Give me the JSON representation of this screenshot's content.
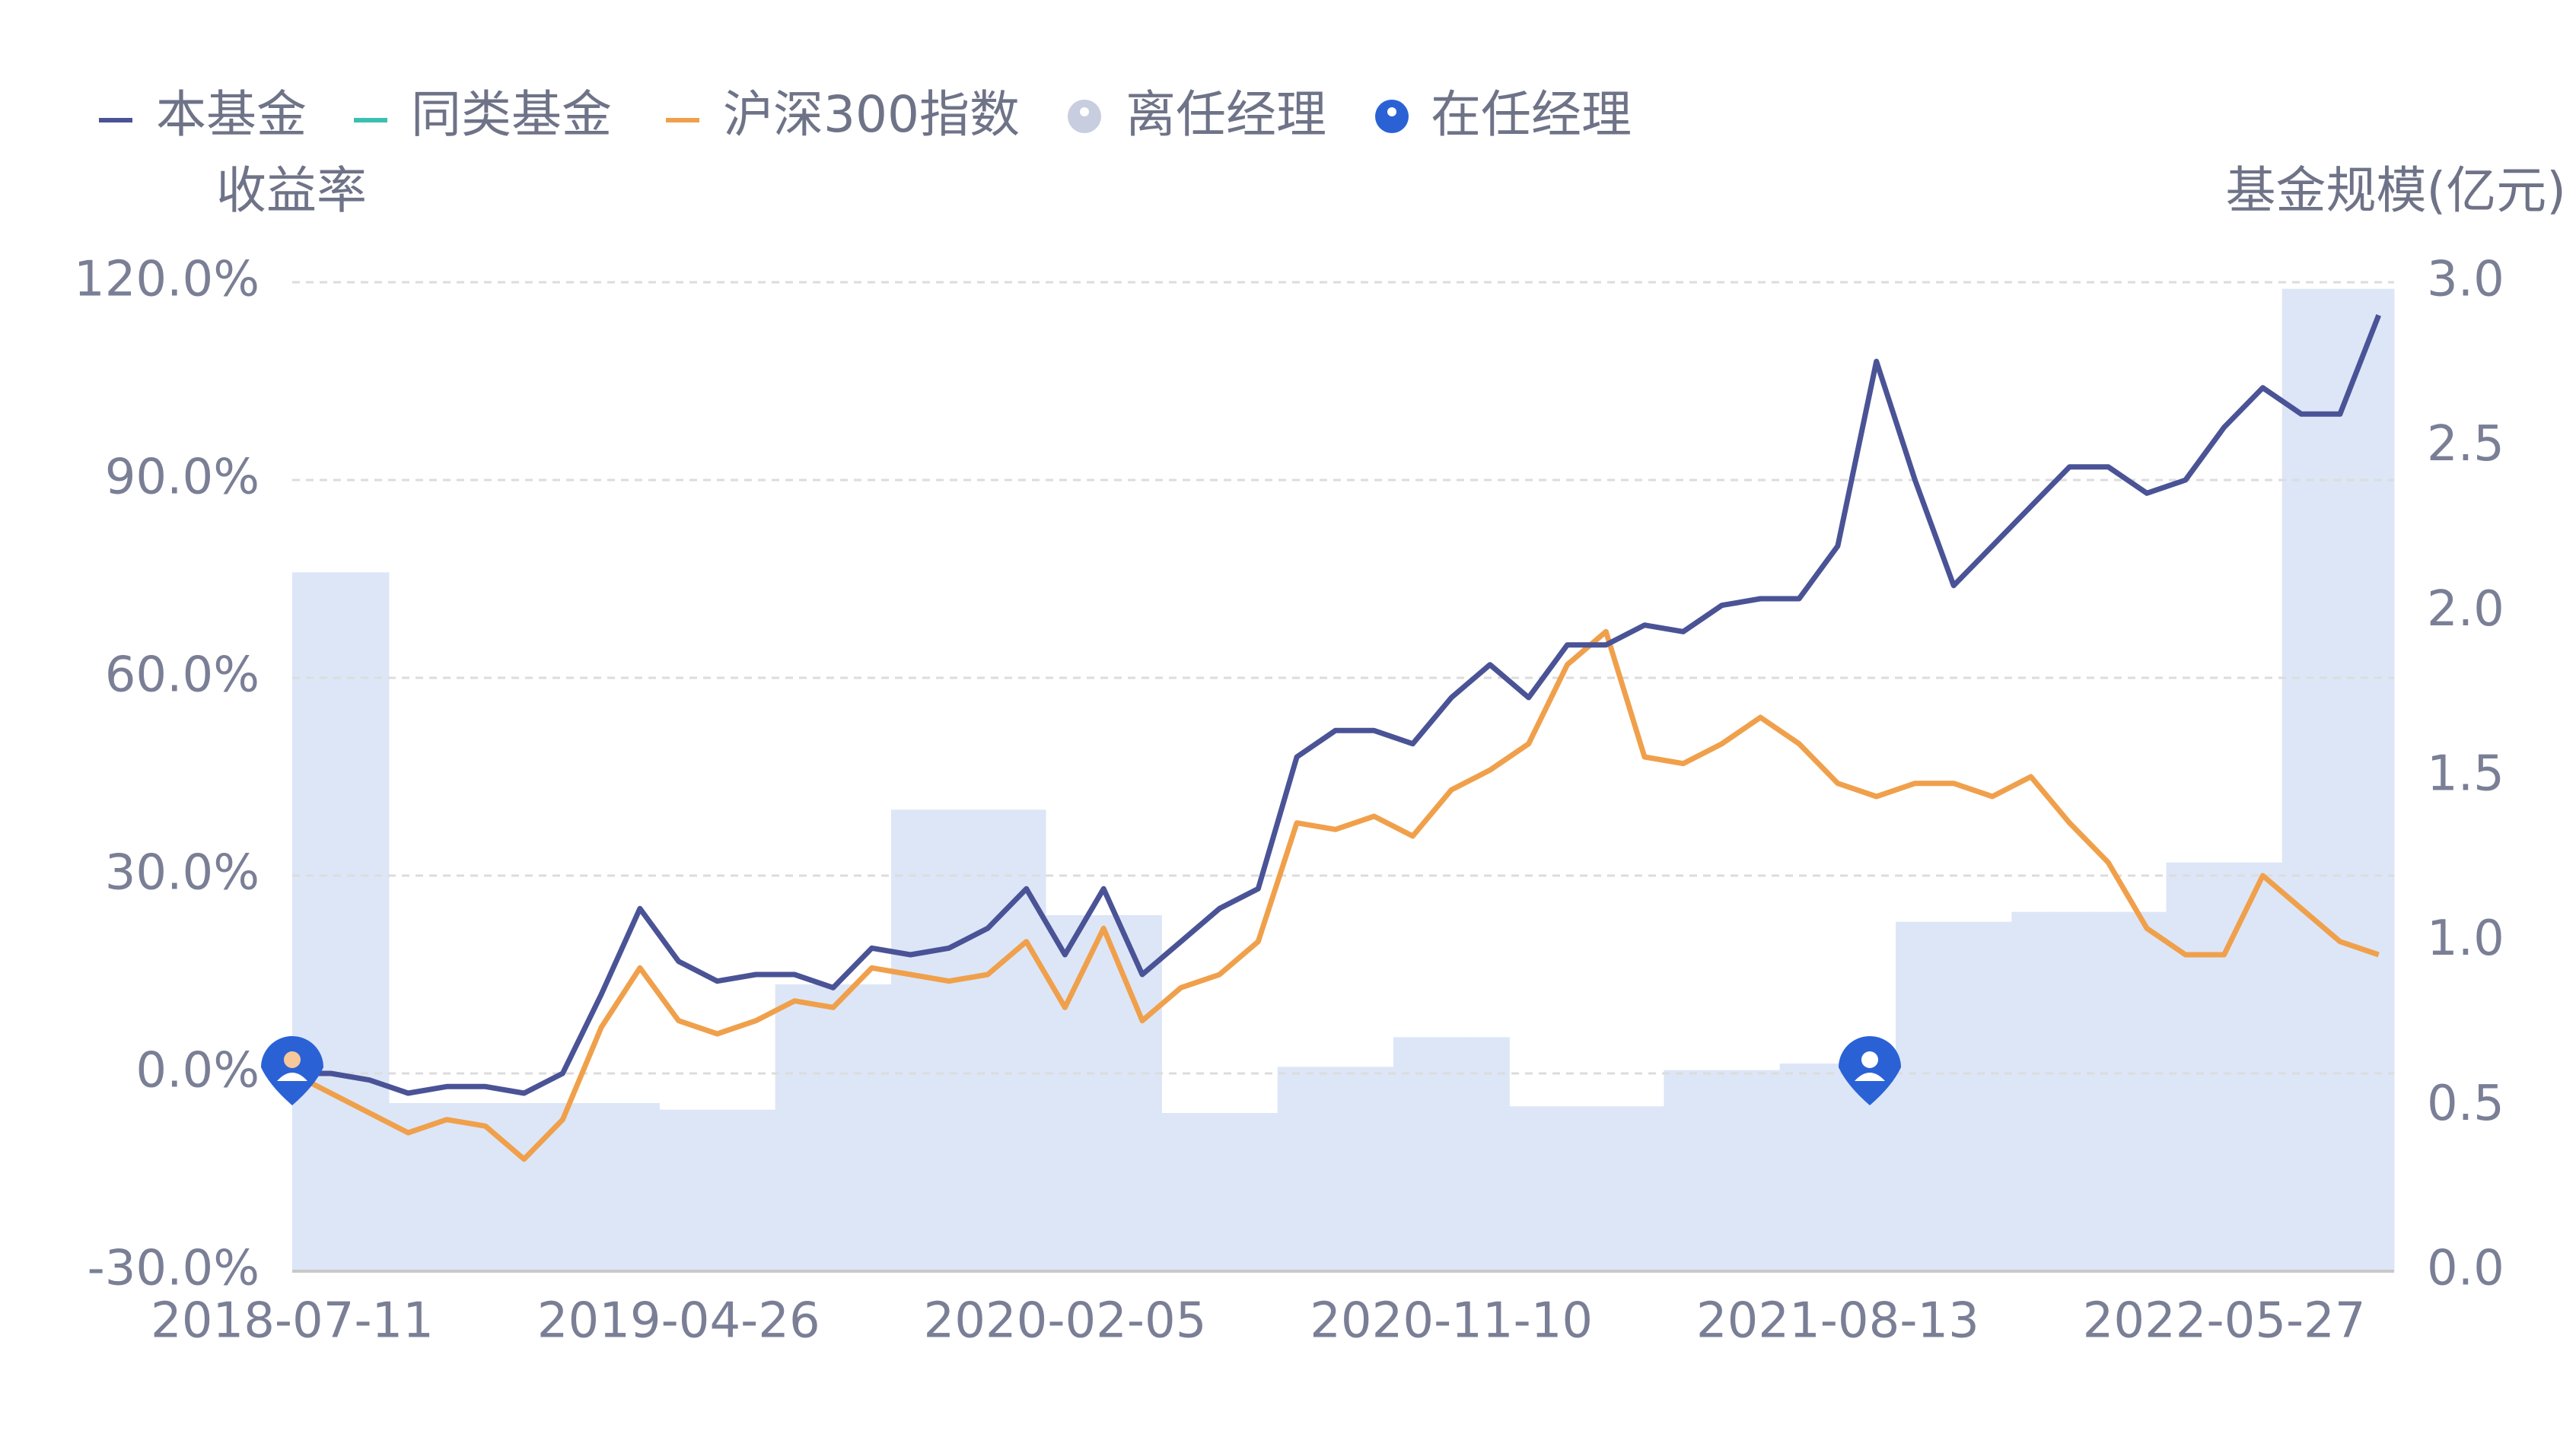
{
  "chart_data": {
    "type": "line",
    "y_label": "收益率",
    "y2_label": "基金规模(亿元)",
    "categories": [
      "2018-07-11",
      null,
      null,
      null,
      null,
      null,
      null,
      null,
      null,
      null,
      "2019-04-26",
      null,
      null,
      null,
      null,
      null,
      null,
      null,
      null,
      null,
      "2020-02-05",
      null,
      null,
      null,
      null,
      null,
      null,
      null,
      null,
      null,
      "2020-11-10",
      null,
      null,
      null,
      null,
      null,
      null,
      null,
      null,
      null,
      "2021-08-13",
      null,
      null,
      null,
      null,
      null,
      null,
      null,
      null,
      null,
      "2022-05-27",
      null,
      null,
      null,
      null
    ],
    "series": [
      {
        "name": "本基金",
        "color": "#4a5396",
        "values": [
          0,
          0,
          -1,
          -3,
          -2,
          -2,
          -3,
          0,
          12,
          25,
          17,
          14,
          15,
          15,
          13,
          19,
          18,
          19,
          22,
          28,
          18,
          28,
          15,
          20,
          25,
          28,
          48,
          52,
          52,
          50,
          57,
          62,
          57,
          65,
          65,
          68,
          67,
          71,
          72,
          72,
          80,
          108,
          90,
          74,
          80,
          86,
          92,
          92,
          88,
          90,
          98,
          104,
          100,
          100,
          115
        ]
      },
      {
        "name": "同类基金",
        "color": "#3bbfb0",
        "values": [
          null,
          null,
          null,
          null,
          null,
          null,
          null,
          null,
          null,
          null,
          null,
          null,
          null,
          null,
          null,
          null,
          null,
          null,
          null,
          null,
          null,
          null,
          null,
          null,
          null,
          null,
          null,
          null,
          null,
          null,
          null,
          null,
          null,
          null,
          null,
          null,
          null,
          null,
          null,
          null,
          null,
          null,
          null,
          null,
          null,
          null,
          null,
          null,
          null,
          null,
          null,
          null,
          null,
          null,
          null
        ]
      },
      {
        "name": "沪深300指数",
        "color": "#f0a04b",
        "values": [
          0,
          -3,
          -6,
          -9,
          -7,
          -8,
          -13,
          -7,
          7,
          16,
          8,
          6,
          8,
          11,
          10,
          16,
          15,
          14,
          15,
          20,
          10,
          22,
          8,
          13,
          15,
          20,
          38,
          37,
          39,
          36,
          43,
          46,
          50,
          62,
          67,
          48,
          47,
          50,
          54,
          50,
          44,
          42,
          44,
          44,
          42,
          45,
          38,
          32,
          22,
          18,
          18,
          30,
          25,
          20,
          18
        ]
      }
    ],
    "bar_series": {
      "color": "#dce6f7",
      "axis": "y2",
      "values": [
        2.12,
        2.12,
        2.12,
        0.51,
        0.51,
        0.51,
        0.51,
        0.51,
        0.51,
        0.51,
        0.49,
        0.49,
        0.49,
        0.87,
        0.87,
        0.87,
        1.4,
        1.4,
        1.4,
        1.4,
        1.08,
        1.08,
        1.08,
        0.48,
        0.48,
        0.48,
        0.62,
        0.62,
        0.62,
        0.71,
        0.71,
        0.71,
        0.5,
        0.5,
        0.5,
        0.5,
        0.61,
        0.61,
        0.61,
        0.63,
        0.63,
        0.63,
        1.06,
        1.06,
        1.06,
        1.09,
        1.09,
        1.09,
        1.09,
        1.24,
        1.24,
        1.24,
        2.98,
        2.98,
        2.98
      ]
    },
    "markers": [
      {
        "name": "离任经理",
        "color": "#c8cde0"
      },
      {
        "name": "在任经理",
        "color": "#2a62d6"
      }
    ],
    "ylim": [
      -30,
      120
    ],
    "yticks": [
      {
        "value": -30,
        "label": "-30.0%"
      },
      {
        "value": 0,
        "label": "0.0%"
      },
      {
        "value": 30,
        "label": "30.0%"
      },
      {
        "value": 60,
        "label": "60.0%"
      },
      {
        "value": 90,
        "label": "90.0%"
      },
      {
        "value": 120,
        "label": "120.0%"
      }
    ],
    "y2lim": [
      0,
      3
    ],
    "y2ticks": [
      {
        "value": 0,
        "label": "0.0"
      },
      {
        "value": 0.5,
        "label": "0.5"
      },
      {
        "value": 1,
        "label": "1.0"
      },
      {
        "value": 1.5,
        "label": "1.5"
      },
      {
        "value": 2,
        "label": "2.0"
      },
      {
        "value": 2.5,
        "label": "2.5"
      },
      {
        "value": 3,
        "label": "3.0"
      }
    ],
    "grid": true
  }
}
